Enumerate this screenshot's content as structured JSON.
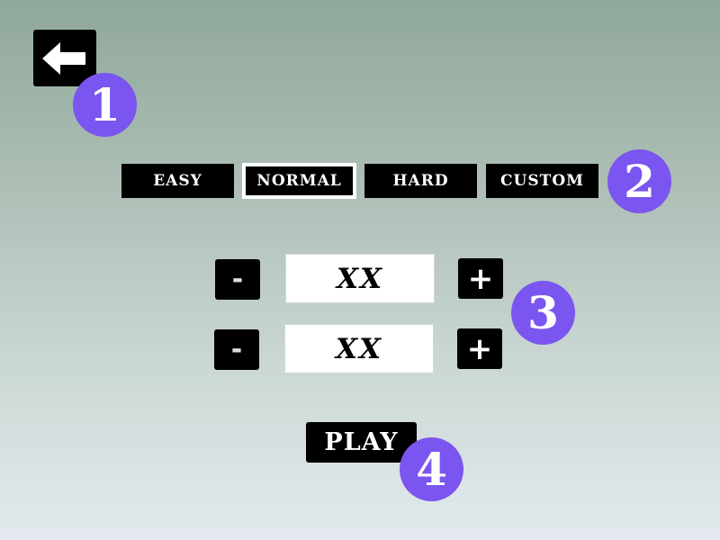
{
  "back": {
    "icon": "left-arrow-icon"
  },
  "difficulty": {
    "tabs": [
      {
        "label": "EASY",
        "active": false
      },
      {
        "label": "NORMAL",
        "active": true
      },
      {
        "label": "HARD",
        "active": false
      },
      {
        "label": "CUSTOM",
        "active": false
      }
    ]
  },
  "settings": {
    "rows": [
      {
        "minus_label": "-",
        "value": "XX",
        "plus_label": "+"
      },
      {
        "minus_label": "-",
        "value": "XX",
        "plus_label": "+"
      }
    ]
  },
  "play": {
    "label": "PLAY"
  },
  "badges": {
    "b1": "1",
    "b2": "2",
    "b3": "3",
    "b4": "4"
  },
  "colors": {
    "badge": "#7a55f0",
    "button_bg": "#000000",
    "bg_top": "#8fa89a",
    "bg_bottom": "#e3e9ee"
  }
}
